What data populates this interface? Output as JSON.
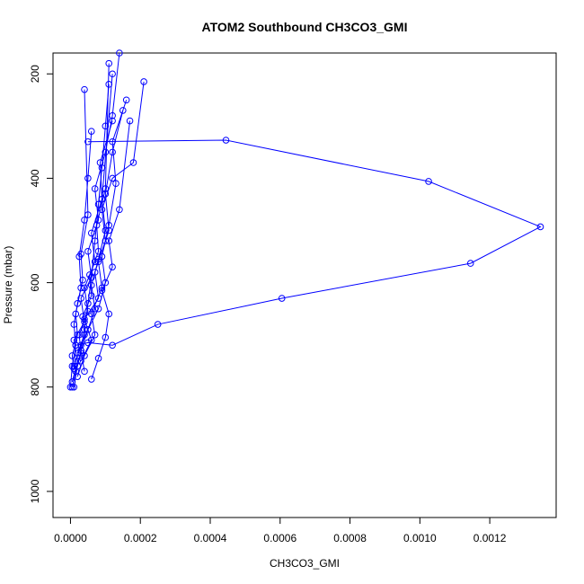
{
  "chart_data": {
    "type": "line",
    "title": "ATOM2 Southbound CH3CO3_GMI",
    "xlabel": "CH3CO3_GMI",
    "ylabel": "Pressure (mbar)",
    "xlim": [
      -5e-05,
      0.00139
    ],
    "ylim": [
      1050,
      160
    ],
    "y_reversed": true,
    "x_ticks": [
      "0.0000",
      "0.0002",
      "0.0004",
      "0.0006",
      "0.0008",
      "0.0010",
      "0.0012"
    ],
    "x_tick_values": [
      0,
      0.0002,
      0.0004,
      0.0006,
      0.0008,
      0.001,
      0.0012
    ],
    "y_ticks": [
      "200",
      "400",
      "600",
      "800",
      "1000"
    ],
    "y_tick_values": [
      200,
      400,
      600,
      800,
      1000
    ],
    "grid": false,
    "series_color": "#0000ff",
    "marker": "open-circle",
    "series": [
      {
        "values_x": [
          1.5e-05,
          5e-05,
          0.00012,
          0.00025,
          0.000605,
          0.001145,
          0.001345,
          0.001025,
          0.000445,
          5e-05
        ],
        "values_y": [
          720,
          715,
          720,
          680,
          630,
          563,
          493,
          406,
          327,
          330
        ]
      },
      {
        "values_x": [
          1e-05,
          2e-05,
          3e-05,
          4e-05,
          5e-05,
          6e-05,
          7e-05,
          8e-05,
          9e-05,
          0.0001,
          0.00011
        ],
        "values_y": [
          800,
          760,
          730,
          690,
          640,
          590,
          520,
          450,
          380,
          300,
          220
        ]
      },
      {
        "values_x": [
          2e-05,
          4e-05,
          7e-05,
          6e-05,
          9e-05,
          8e-05,
          0.00011,
          0.0001,
          0.00012,
          0.00015
        ],
        "values_y": [
          780,
          740,
          700,
          660,
          610,
          560,
          500,
          430,
          350,
          270
        ]
      },
      {
        "values_x": [
          5e-06,
          1.5e-05,
          3e-05,
          2.5e-05,
          5e-05,
          4e-05,
          7e-05,
          6e-05,
          9e-05,
          8.5e-05,
          0.00012
        ],
        "values_y": [
          800,
          770,
          735,
          700,
          655,
          610,
          560,
          505,
          440,
          370,
          290
        ]
      },
      {
        "values_x": [
          1e-05,
          3e-05,
          5e-05,
          8e-05,
          0.0001,
          9e-05,
          0.00011,
          0.00013,
          0.00012,
          0.00016
        ],
        "values_y": [
          760,
          720,
          690,
          650,
          600,
          550,
          490,
          410,
          330,
          250
        ]
      },
      {
        "values_x": [
          3e-05,
          6e-05,
          4e-05,
          8e-05,
          7e-05,
          0.0001,
          9e-05,
          0.00012,
          0.00018,
          0.00021
        ],
        "values_y": [
          750,
          710,
          670,
          630,
          580,
          520,
          460,
          400,
          370,
          215
        ]
      },
      {
        "values_x": [
          5e-06,
          2e-05,
          1e-05,
          4e-05,
          3e-05,
          6e-05,
          5e-05,
          8e-05,
          7e-05,
          0.0001,
          0.00012,
          0.00014
        ],
        "values_y": [
          790,
          750,
          710,
          675,
          630,
          590,
          540,
          480,
          420,
          350,
          280,
          160
        ]
      },
      {
        "values_x": [
          1e-05,
          5e-06,
          2e-05,
          1.5e-05,
          3e-05,
          2.5e-05,
          4e-05,
          5e-05,
          6e-05
        ],
        "values_y": [
          765,
          740,
          700,
          660,
          610,
          550,
          480,
          400,
          310
        ]
      },
      {
        "values_x": [
          6e-05,
          8e-05,
          0.0001,
          0.00011,
          9e-05,
          0.00012,
          0.00011,
          0.00014,
          0.00017
        ],
        "values_y": [
          785,
          745,
          705,
          660,
          615,
          570,
          520,
          460,
          290
        ]
      },
      {
        "values_x": [
          2e-05,
          4e-05,
          3.5e-05,
          6e-05,
          5.5e-05,
          8e-05,
          7.5e-05,
          0.0001,
          0.00011
        ],
        "values_y": [
          735,
          700,
          665,
          625,
          585,
          540,
          490,
          420,
          180
        ]
      },
      {
        "values_x": [
          4e-05,
          3e-05,
          5e-05,
          7e-05,
          6e-05,
          8e-05,
          0.0001,
          9e-05,
          0.00012
        ],
        "values_y": [
          770,
          730,
          690,
          650,
          605,
          555,
          500,
          440,
          200
        ]
      },
      {
        "values_x": [
          0.0,
          5e-06,
          1.5e-05,
          1e-05,
          2e-05,
          3.5e-05,
          3e-05,
          5e-05,
          4e-05
        ],
        "values_y": [
          800,
          760,
          720,
          680,
          640,
          595,
          545,
          470,
          230
        ]
      }
    ]
  }
}
